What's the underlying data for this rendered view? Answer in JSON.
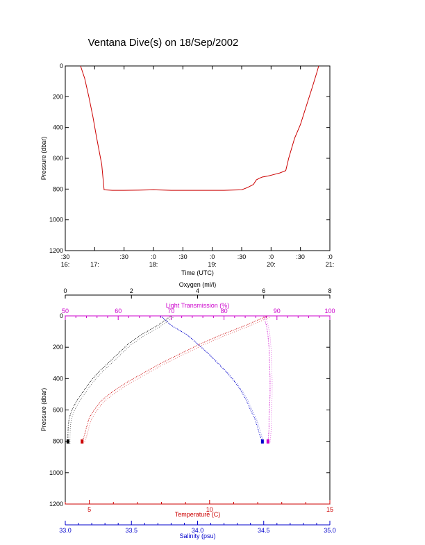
{
  "title": "Ventana Dive(s) on 18/Sep/2002",
  "chart_data": [
    {
      "type": "line",
      "xlabel": "Time (UTC)",
      "ylabel": "Pressure (dbar)",
      "x_unit": "hours UTC",
      "xlim": [
        16.5,
        21.0
      ],
      "ylim": [
        1200,
        0
      ],
      "y_ticks": [
        0,
        200,
        400,
        600,
        800,
        1000,
        1200
      ],
      "x_ticks": [
        {
          "value": 16.5,
          "top": ":30",
          "bottom": "16:"
        },
        {
          "value": 17.0,
          "top": "",
          "bottom": "17:"
        },
        {
          "value": 17.5,
          "top": ":30",
          "bottom": ""
        },
        {
          "value": 18.0,
          "top": ":0",
          "bottom": "18:"
        },
        {
          "value": 18.5,
          "top": ":30",
          "bottom": ""
        },
        {
          "value": 19.0,
          "top": ":0",
          "bottom": "19:"
        },
        {
          "value": 19.5,
          "top": ":30",
          "bottom": ""
        },
        {
          "value": 20.0,
          "top": ":0",
          "bottom": "20:"
        },
        {
          "value": 20.5,
          "top": ":30",
          "bottom": ""
        },
        {
          "value": 21.0,
          "top": ":0",
          "bottom": "21:"
        }
      ],
      "series": [
        {
          "color": "#cc0000",
          "x": [
            16.76,
            16.83,
            16.9,
            16.97,
            17.03,
            17.08,
            17.12,
            17.16,
            17.3,
            17.5,
            17.75,
            18.0,
            18.3,
            18.6,
            18.9,
            19.2,
            19.5,
            19.6,
            19.7,
            19.75,
            19.8,
            19.85,
            19.95,
            20.05,
            20.15,
            20.25,
            20.3,
            20.4,
            20.5,
            20.6,
            20.7,
            20.78,
            20.81
          ],
          "y": [
            0,
            80,
            200,
            330,
            460,
            560,
            640,
            805,
            808,
            808,
            807,
            805,
            808,
            808,
            808,
            808,
            805,
            790,
            770,
            740,
            730,
            722,
            715,
            705,
            695,
            680,
            600,
            470,
            380,
            260,
            140,
            40,
            0
          ]
        }
      ]
    },
    {
      "type": "line",
      "ylabel": "Pressure (dbar)",
      "ylim": [
        1200,
        0
      ],
      "y_ticks": [
        0,
        200,
        400,
        600,
        800,
        1000,
        1200
      ],
      "axes": [
        {
          "label": "Oxygen (ml/l)",
          "position": "top",
          "color": "#000000",
          "range": [
            0,
            8
          ],
          "ticks": [
            "0",
            "2",
            "4",
            "6",
            "8"
          ]
        },
        {
          "label": "Light Transmission (%)",
          "position": "top-inner",
          "color": "#cc00cc",
          "range": [
            50,
            100
          ],
          "ticks": [
            "50",
            "60",
            "70",
            "80",
            "90",
            "100"
          ]
        },
        {
          "label": "Temperature (C)",
          "position": "bottom",
          "color": "#cc0000",
          "range": [
            4,
            15
          ],
          "ticks": [
            "5",
            "10",
            "15"
          ]
        },
        {
          "label": "Salinity (psu)",
          "position": "bottom-outer",
          "color": "#0000cc",
          "range": [
            33.0,
            35.0
          ],
          "ticks": [
            "33.0",
            "33.5",
            "34.0",
            "34.5",
            "35.0"
          ]
        }
      ],
      "series": [
        {
          "axis": "Oxygen (ml/l)",
          "color": "#000000",
          "x": [
            3.2,
            2.8,
            2.3,
            1.9,
            1.6,
            1.3,
            1.0,
            0.75,
            0.55,
            0.35,
            0.2,
            0.12,
            0.09,
            0.08,
            0.08
          ],
          "y": [
            0,
            60,
            120,
            180,
            240,
            300,
            360,
            420,
            480,
            540,
            600,
            650,
            700,
            760,
            805
          ]
        },
        {
          "axis": "Light Transmission (%)",
          "color": "#cc00cc",
          "x": [
            87.5,
            88.0,
            88.3,
            88.5,
            88.6,
            88.7,
            88.7,
            88.6,
            88.5,
            88.5,
            88.4,
            88.3
          ],
          "y": [
            0,
            60,
            120,
            200,
            300,
            400,
            500,
            580,
            650,
            720,
            770,
            805
          ]
        },
        {
          "axis": "Temperature (C)",
          "color": "#cc0000",
          "x": [
            12.4,
            11.5,
            10.5,
            9.6,
            8.8,
            8.0,
            7.3,
            6.6,
            6.0,
            5.5,
            5.2,
            5.0,
            4.9,
            4.8,
            4.7
          ],
          "y": [
            0,
            60,
            120,
            180,
            240,
            300,
            360,
            420,
            480,
            540,
            600,
            650,
            700,
            760,
            805
          ]
        },
        {
          "axis": "Salinity (psu)",
          "color": "#0000cc",
          "x": [
            33.72,
            33.8,
            33.92,
            34.0,
            34.08,
            34.15,
            34.22,
            34.28,
            34.33,
            34.37,
            34.4,
            34.43,
            34.45,
            34.47,
            34.49
          ],
          "y": [
            0,
            60,
            120,
            180,
            240,
            300,
            360,
            420,
            480,
            540,
            600,
            650,
            700,
            760,
            805
          ]
        }
      ]
    }
  ]
}
